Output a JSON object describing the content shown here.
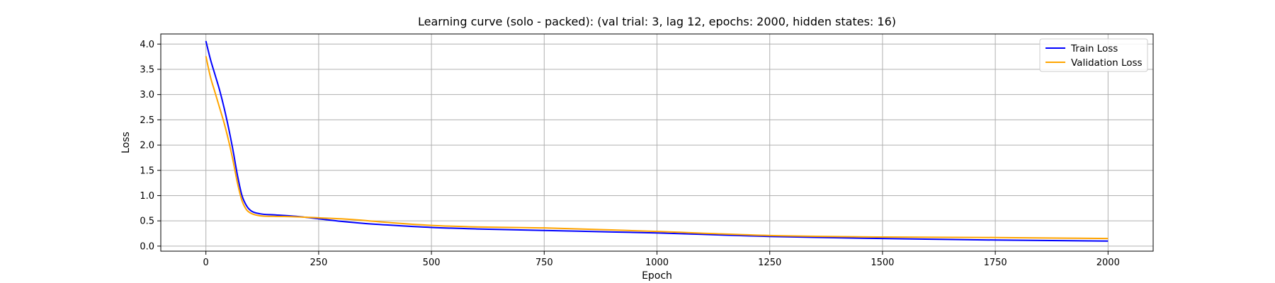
{
  "chart_data": {
    "type": "line",
    "title": "Learning curve (solo - packed): (val trial: 3, lag 12, epochs: 2000, hidden states: 16)",
    "xlabel": "Epoch",
    "ylabel": "Loss",
    "xlim": [
      -100,
      2100
    ],
    "ylim": [
      -0.1,
      4.2
    ],
    "xticks": [
      0,
      250,
      500,
      750,
      1000,
      1250,
      1500,
      1750,
      2000
    ],
    "xtick_labels": [
      "0",
      "250",
      "500",
      "750",
      "1000",
      "1250",
      "1500",
      "1750",
      "2000"
    ],
    "yticks": [
      0.0,
      0.5,
      1.0,
      1.5,
      2.0,
      2.5,
      3.0,
      3.5,
      4.0
    ],
    "ytick_labels": [
      "0.0",
      "0.5",
      "1.0",
      "1.5",
      "2.0",
      "2.5",
      "3.0",
      "3.5",
      "4.0"
    ],
    "grid": true,
    "legend_position": "top-right",
    "series": [
      {
        "name": "Train Loss",
        "color": "#0000ff",
        "x": [
          0,
          10,
          20,
          30,
          40,
          50,
          60,
          70,
          80,
          90,
          100,
          120,
          150,
          200,
          250,
          300,
          350,
          400,
          500,
          600,
          750,
          900,
          1000,
          1250,
          1500,
          1750,
          2000
        ],
        "y": [
          4.06,
          3.7,
          3.4,
          3.1,
          2.75,
          2.35,
          1.9,
          1.4,
          1.0,
          0.8,
          0.7,
          0.64,
          0.62,
          0.59,
          0.54,
          0.49,
          0.45,
          0.42,
          0.37,
          0.34,
          0.31,
          0.28,
          0.26,
          0.19,
          0.15,
          0.12,
          0.1
        ]
      },
      {
        "name": "Validation Loss",
        "color": "#ffa500",
        "x": [
          0,
          10,
          20,
          30,
          40,
          50,
          60,
          70,
          80,
          90,
          100,
          120,
          150,
          200,
          250,
          300,
          350,
          400,
          500,
          600,
          750,
          900,
          1000,
          1250,
          1500,
          1750,
          2000
        ],
        "y": [
          3.76,
          3.35,
          3.05,
          2.75,
          2.45,
          2.1,
          1.7,
          1.25,
          0.9,
          0.72,
          0.65,
          0.6,
          0.59,
          0.58,
          0.56,
          0.54,
          0.51,
          0.47,
          0.41,
          0.38,
          0.36,
          0.32,
          0.29,
          0.21,
          0.18,
          0.17,
          0.15
        ]
      }
    ]
  }
}
